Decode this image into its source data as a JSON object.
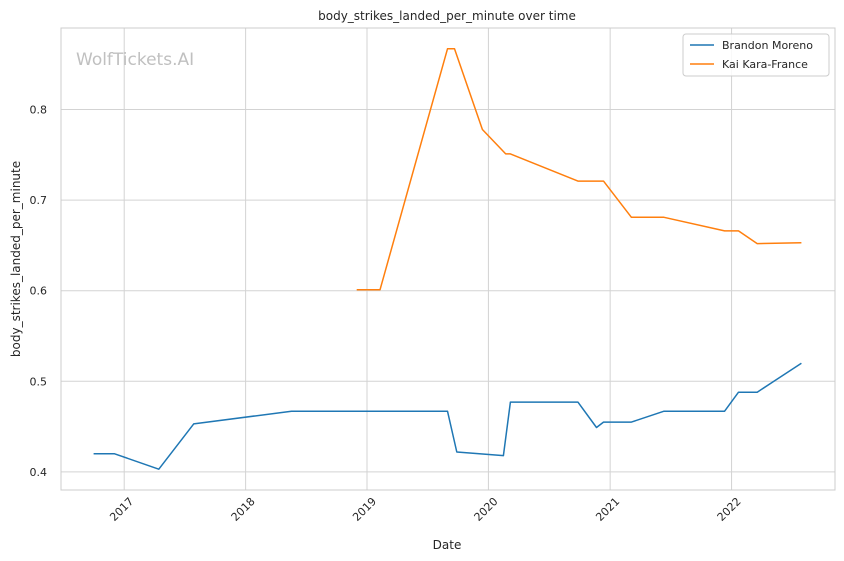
{
  "chart_data": {
    "type": "line",
    "title": "body_strikes_landed_per_minute over time",
    "xlabel": "Date",
    "ylabel": "body_strikes_landed_per_minute",
    "watermark": "WolfTickets.AI",
    "x_ticks": [
      "2017",
      "2018",
      "2019",
      "2020",
      "2021",
      "2022"
    ],
    "y_ticks": [
      "0.4",
      "0.5",
      "0.6",
      "0.7",
      "0.8"
    ],
    "xlim": [
      "2016-06-25",
      "2022-11-08"
    ],
    "ylim": [
      0.38,
      0.89
    ],
    "grid": true,
    "legend_position": "top-right",
    "series": [
      {
        "name": "Brandon Moreno",
        "color": "#1f77b4",
        "points": [
          [
            "2016-10-01",
            0.42
          ],
          [
            "2016-12-03",
            0.42
          ],
          [
            "2017-04-15",
            0.403
          ],
          [
            "2017-07-29",
            0.453
          ],
          [
            "2018-05-19",
            0.467
          ],
          [
            "2019-08-31",
            0.467
          ],
          [
            "2019-09-28",
            0.422
          ],
          [
            "2020-02-15",
            0.418
          ],
          [
            "2020-03-07",
            0.477
          ],
          [
            "2020-09-26",
            0.477
          ],
          [
            "2020-11-21",
            0.449
          ],
          [
            "2020-12-12",
            0.455
          ],
          [
            "2021-03-06",
            0.455
          ],
          [
            "2021-06-12",
            0.467
          ],
          [
            "2021-12-11",
            0.467
          ],
          [
            "2022-01-22",
            0.488
          ],
          [
            "2022-03-19",
            0.488
          ],
          [
            "2022-07-30",
            0.52
          ]
        ]
      },
      {
        "name": "Kai Kara-France",
        "color": "#ff7f0e",
        "points": [
          [
            "2018-12-01",
            0.601
          ],
          [
            "2019-02-09",
            0.601
          ],
          [
            "2019-08-31",
            0.867
          ],
          [
            "2019-09-21",
            0.867
          ],
          [
            "2019-12-14",
            0.778
          ],
          [
            "2020-02-22",
            0.751
          ],
          [
            "2020-03-07",
            0.751
          ],
          [
            "2020-09-26",
            0.721
          ],
          [
            "2020-12-12",
            0.721
          ],
          [
            "2021-03-06",
            0.681
          ],
          [
            "2021-06-12",
            0.681
          ],
          [
            "2021-12-11",
            0.666
          ],
          [
            "2022-01-22",
            0.666
          ],
          [
            "2022-03-19",
            0.652
          ],
          [
            "2022-07-30",
            0.653
          ]
        ]
      }
    ]
  }
}
